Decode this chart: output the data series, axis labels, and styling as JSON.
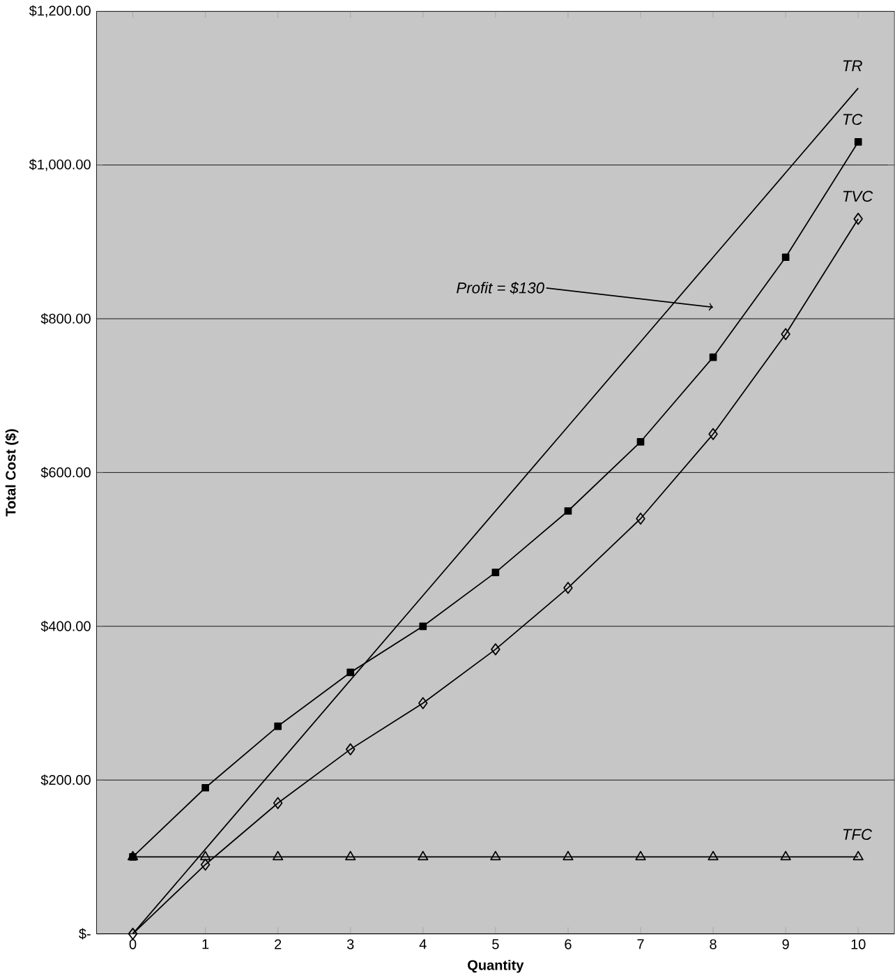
{
  "chart_data": {
    "type": "line",
    "xlabel": "Quantity",
    "ylabel": "Total Cost ($)",
    "categories": [
      "0",
      "1",
      "2",
      "3",
      "4",
      "5",
      "6",
      "7",
      "8",
      "9",
      "10"
    ],
    "series": [
      {
        "name": "TR",
        "color": "#000000",
        "marker": "none",
        "values": [
          0,
          110,
          220,
          330,
          440,
          550,
          660,
          770,
          880,
          990,
          1100
        ]
      },
      {
        "name": "TC",
        "color": "#000000",
        "marker": "square",
        "values": [
          100,
          190,
          270,
          340,
          400,
          470,
          550,
          640,
          750,
          880,
          1030
        ]
      },
      {
        "name": "TVC",
        "color": "#000000",
        "marker": "diamond",
        "values": [
          0,
          90,
          170,
          240,
          300,
          370,
          450,
          540,
          650,
          780,
          930
        ]
      },
      {
        "name": "TFC",
        "color": "#000000",
        "marker": "triangle",
        "values": [
          100,
          100,
          100,
          100,
          100,
          100,
          100,
          100,
          100,
          100,
          100
        ]
      }
    ],
    "ylim": [
      0,
      1200
    ],
    "yticks": [
      {
        "value": 0,
        "label": "$-"
      },
      {
        "value": 200,
        "label": "$200.00"
      },
      {
        "value": 400,
        "label": "$400.00"
      },
      {
        "value": 600,
        "label": "$600.00"
      },
      {
        "value": 800,
        "label": "$800.00"
      },
      {
        "value": 1000,
        "label": "$1,000.00"
      },
      {
        "value": 1200,
        "label": "$1,200.00"
      }
    ],
    "grid": "y",
    "annotations": [
      {
        "text": "Profit = $130",
        "x": "8",
        "y": 815
      }
    ]
  }
}
